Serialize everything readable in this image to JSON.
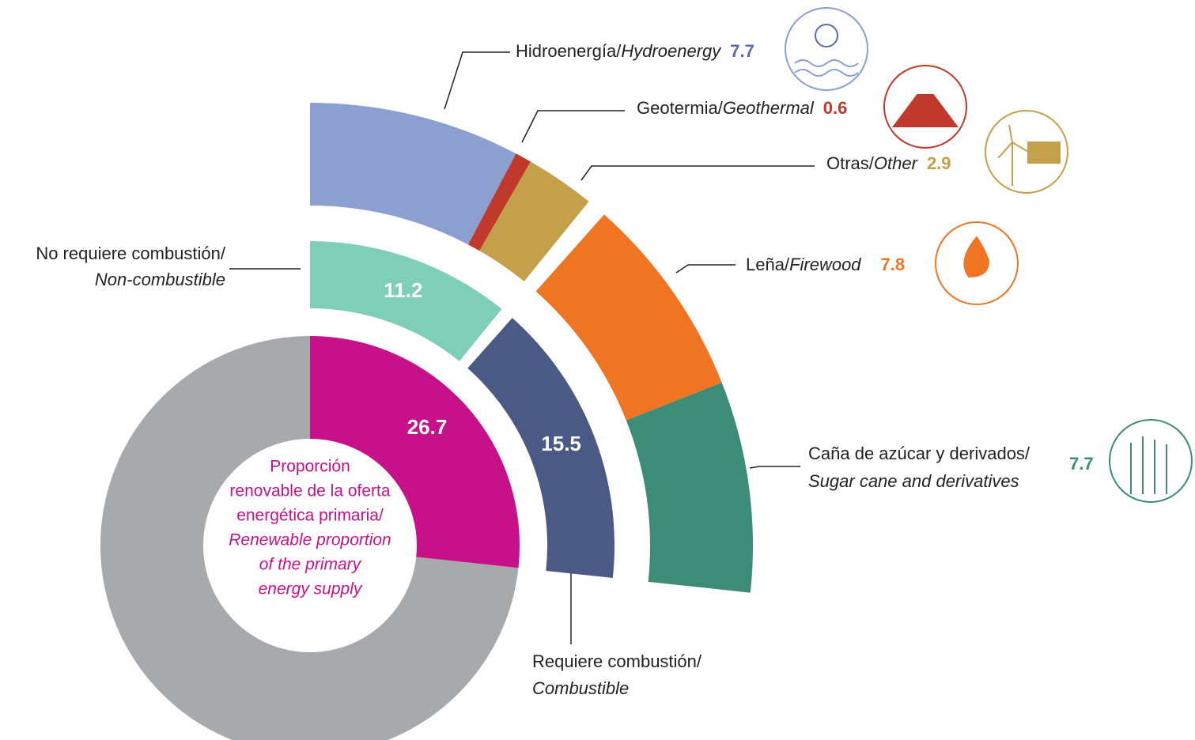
{
  "chart_data": {
    "type": "sunburst",
    "full_scale": 100,
    "renewable_share": 26.7,
    "renewable_color": "#c8108a",
    "rest_color": "#a7a9ac",
    "center_label": {
      "es": [
        "Proporción",
        "renovable de la oferta",
        "energética primaria/"
      ],
      "en": [
        "Renewable proportion",
        "of the primary",
        "energy supply"
      ]
    },
    "groups": [
      {
        "name": "No requiere combustión/",
        "name_en": "Non-combustible",
        "value": 11.2,
        "color": "#7fcfb8",
        "children": [
          {
            "name": "Hidroenergía/",
            "name_en": "Hydroenergy",
            "value": 7.7,
            "color": "#8b9fd1"
          },
          {
            "name": "Geotermia/",
            "name_en": "Geothermal",
            "value": 0.6,
            "color": "#c0392b"
          },
          {
            "name": "Otras/",
            "name_en": "Other",
            "value": 2.9,
            "color": "#c4a04a"
          }
        ]
      },
      {
        "name": "Requiere combustión/",
        "name_en": "Combustible",
        "value": 15.5,
        "color": "#4a5a85",
        "children": [
          {
            "name": "Leña/",
            "name_en": "Firewood",
            "value": 7.8,
            "color": "#f07523"
          },
          {
            "name": "Caña de azúcar y derivados/",
            "name_en": "Sugar cane and derivatives",
            "value": 7.7,
            "color": "#3d8c78"
          }
        ]
      }
    ]
  }
}
